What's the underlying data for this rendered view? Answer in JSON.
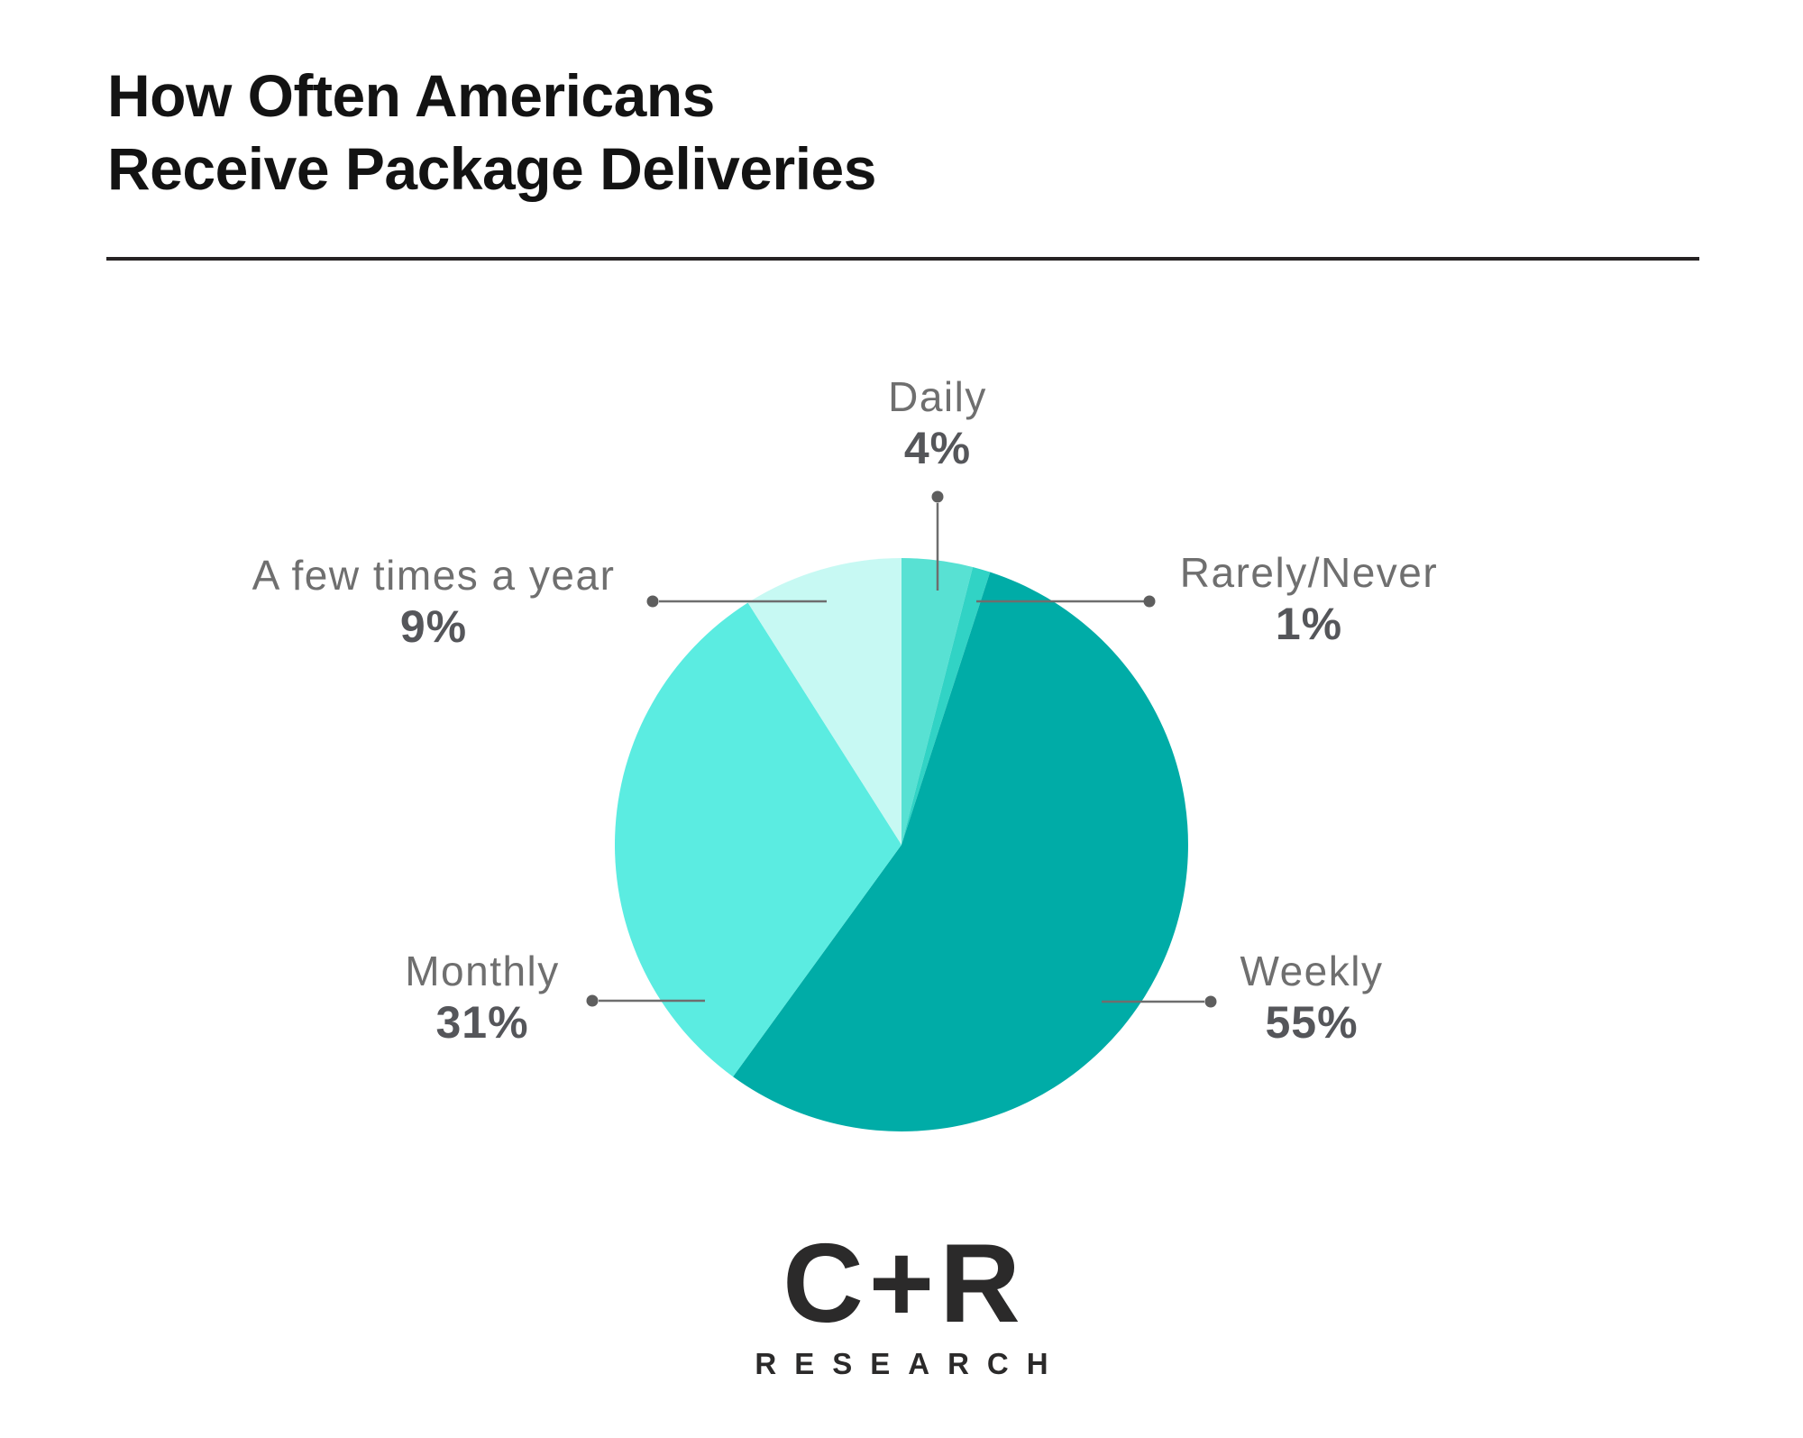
{
  "title": {
    "line1": "How Often Americans",
    "line2": "Receive Package Deliveries"
  },
  "chart_data": {
    "type": "pie",
    "title": "How Often Americans Receive Package Deliveries",
    "start_angle_deg": 0,
    "direction": "clockwise-from-top",
    "legend_position": "callout-labels",
    "segments": [
      {
        "label": "Daily",
        "value": 4,
        "pct": "4%",
        "color": "#58E1D3"
      },
      {
        "label": "Rarely/Never",
        "value": 1,
        "pct": "1%",
        "color": "#31D3C5"
      },
      {
        "label": "Weekly",
        "value": 55,
        "pct": "55%",
        "color": "#00ACA7"
      },
      {
        "label": "Monthly",
        "value": 31,
        "pct": "31%",
        "color": "#5BECE1"
      },
      {
        "label": "A few times a year",
        "value": 9,
        "pct": "9%",
        "color": "#C7F9F3"
      }
    ]
  },
  "logo": {
    "main": "C+R",
    "sub": "RESEARCH"
  },
  "colors": {
    "title_text": "#131313",
    "label_text": "#6f6f6f",
    "value_text": "#55565a",
    "leader_line": "#6e6e6e",
    "leader_dot": "#5e5e5e",
    "divider": "#262223",
    "background": "#ffffff"
  }
}
